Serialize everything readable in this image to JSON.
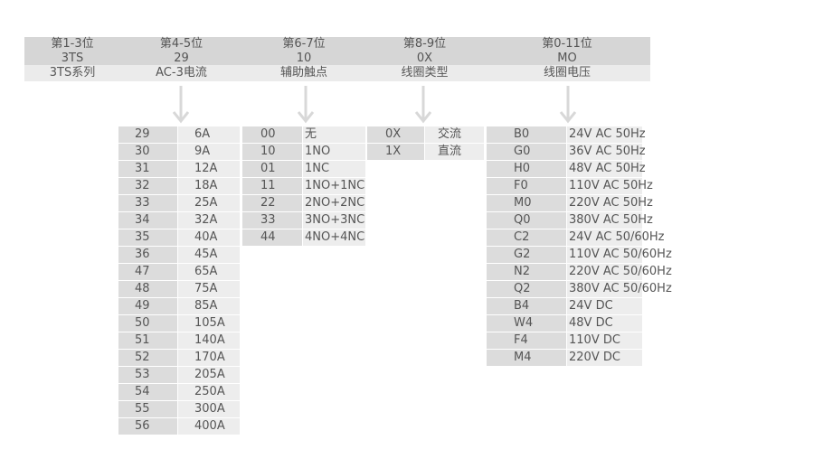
{
  "header": {
    "columns": [
      {
        "position": "第1-3位",
        "code": "3TS",
        "desc": "3TS系列"
      },
      {
        "position": "第4-5位",
        "code": "29",
        "desc": "AC-3电流"
      },
      {
        "position": "第6-7位",
        "code": "10",
        "desc": "辅助触点"
      },
      {
        "position": "第8-9位",
        "code": "0X",
        "desc": "线圈类型"
      },
      {
        "position": "第0-11位",
        "code": "MO",
        "desc": "线圈电压"
      }
    ]
  },
  "tables": [
    {
      "rows": [
        [
          "29",
          "6A"
        ],
        [
          "30",
          "9A"
        ],
        [
          "31",
          "12A"
        ],
        [
          "32",
          "18A"
        ],
        [
          "33",
          "25A"
        ],
        [
          "34",
          "32A"
        ],
        [
          "35",
          "40A"
        ],
        [
          "36",
          "45A"
        ],
        [
          "47",
          "65A"
        ],
        [
          "48",
          "75A"
        ],
        [
          "49",
          "85A"
        ],
        [
          "50",
          "105A"
        ],
        [
          "51",
          "140A"
        ],
        [
          "52",
          "170A"
        ],
        [
          "53",
          "205A"
        ],
        [
          "54",
          "250A"
        ],
        [
          "55",
          "300A"
        ],
        [
          "56",
          "400A"
        ]
      ]
    },
    {
      "rows": [
        [
          "00",
          "无"
        ],
        [
          "10",
          "1NO"
        ],
        [
          "01",
          "1NC"
        ],
        [
          "11",
          "1NO+1NC"
        ],
        [
          "22",
          "2NO+2NC"
        ],
        [
          "33",
          "3NO+3NC"
        ],
        [
          "44",
          "4NO+4NC"
        ]
      ]
    },
    {
      "rows": [
        [
          "0X",
          "交流"
        ],
        [
          "1X",
          "直流"
        ]
      ]
    },
    {
      "rows": [
        [
          "B0",
          "24V AC 50Hz"
        ],
        [
          "G0",
          "36V AC 50Hz"
        ],
        [
          "H0",
          "48V AC 50Hz"
        ],
        [
          "F0",
          "110V AC 50Hz"
        ],
        [
          "M0",
          "220V AC 50Hz"
        ],
        [
          "Q0",
          "380V AC 50Hz"
        ],
        [
          "C2",
          "24V AC 50/60Hz"
        ],
        [
          "G2",
          "110V AC 50/60Hz"
        ],
        [
          "N2",
          "220V AC 50/60Hz"
        ],
        [
          "Q2",
          "380V AC 50/60Hz"
        ],
        [
          "B4",
          "24V DC"
        ],
        [
          "W4",
          "48V DC"
        ],
        [
          "F4",
          "110V DC"
        ],
        [
          "M4",
          "220V DC"
        ]
      ]
    }
  ]
}
